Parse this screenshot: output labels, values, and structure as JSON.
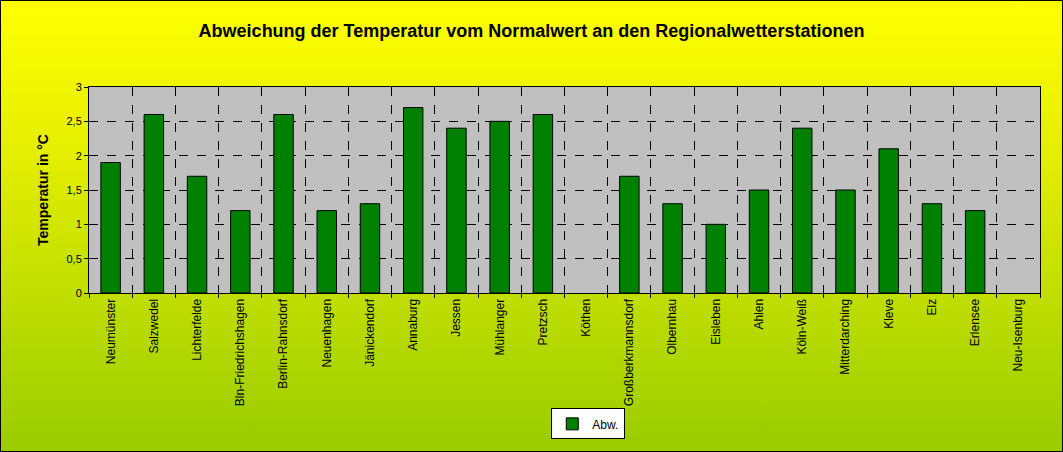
{
  "chart_data": {
    "type": "bar",
    "title": "Abweichung der Temperatur vom Normalwert an den Regionalwetterstationen",
    "y_label": "Temperatur in °C",
    "categories": [
      "Neumünster",
      "Salzwedel",
      "Lichterfelde",
      "Bln-Friedrichshagen",
      "Berlin-Rahnsdorf",
      "Neuenhagen",
      "Jänickendorf",
      "Annaburg",
      "Jessen",
      "Mühlanger",
      "Pretzsch",
      "Köthen",
      "Großberkmannsdorf",
      "Olbernhau",
      "Eisleben",
      "Ahlen",
      "Köln-Weiß",
      "Mitterdarching",
      "Kleve",
      "Elz",
      "Erlensee",
      "Neu-Isenburg"
    ],
    "series": [
      {
        "name": "Abw.",
        "color": "#008000",
        "values": [
          1.9,
          2.6,
          1.7,
          1.2,
          2.6,
          1.2,
          1.3,
          2.7,
          2.4,
          2.5,
          2.6,
          null,
          1.7,
          1.3,
          1.0,
          1.5,
          2.4,
          1.5,
          2.1,
          1.3,
          1.2,
          null
        ]
      }
    ],
    "ylim": [
      0,
      3
    ],
    "yticks": [
      0,
      {
        "value": 0.5,
        "label": "0,5"
      },
      1,
      {
        "value": 1.5,
        "label": "1,5"
      },
      2,
      {
        "value": 2.5,
        "label": "2,5"
      },
      3
    ],
    "grid": true,
    "legend": "bottom",
    "data_labels": false
  }
}
